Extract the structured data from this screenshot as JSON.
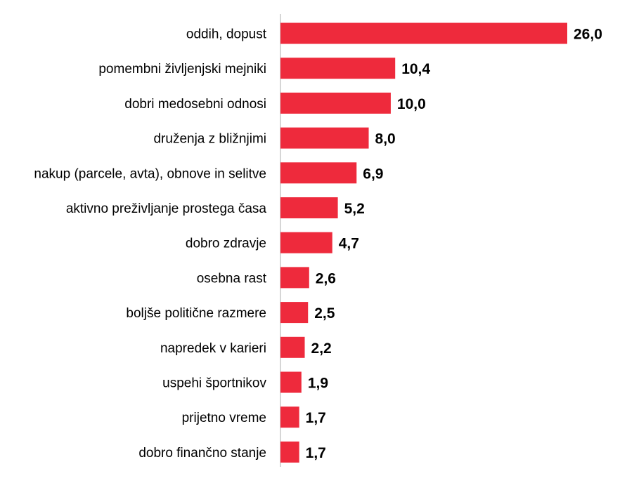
{
  "chart_data": {
    "type": "bar",
    "orientation": "horizontal",
    "categories": [
      "oddih, dopust",
      "pomembni življenjski mejniki",
      "dobri medosebni odnosi",
      "druženja z bližnjimi",
      "nakup (parcele, avta), obnove in selitve",
      "aktivno preživljanje prostega časa",
      "dobro zdravje",
      "osebna rast",
      "boljše politične razmere",
      "napredek v karieri",
      "uspehi športnikov",
      "prijetno vreme",
      "dobro finančno stanje"
    ],
    "values": [
      26.0,
      10.4,
      10.0,
      8.0,
      6.9,
      5.2,
      4.7,
      2.6,
      2.5,
      2.2,
      1.9,
      1.7,
      1.7
    ],
    "value_labels": [
      "26,0",
      "10,4",
      "10,0",
      "8,0",
      "6,9",
      "5,2",
      "4,7",
      "2,6",
      "2,5",
      "2,2",
      "1,9",
      "1,7",
      "1,7"
    ],
    "title": "",
    "xlabel": "",
    "ylabel": "",
    "xlim": [
      0,
      26.0
    ],
    "grid": false,
    "legend": "none",
    "bar_color": "#EE2A3C",
    "axis_color": "#C8C8C8"
  }
}
